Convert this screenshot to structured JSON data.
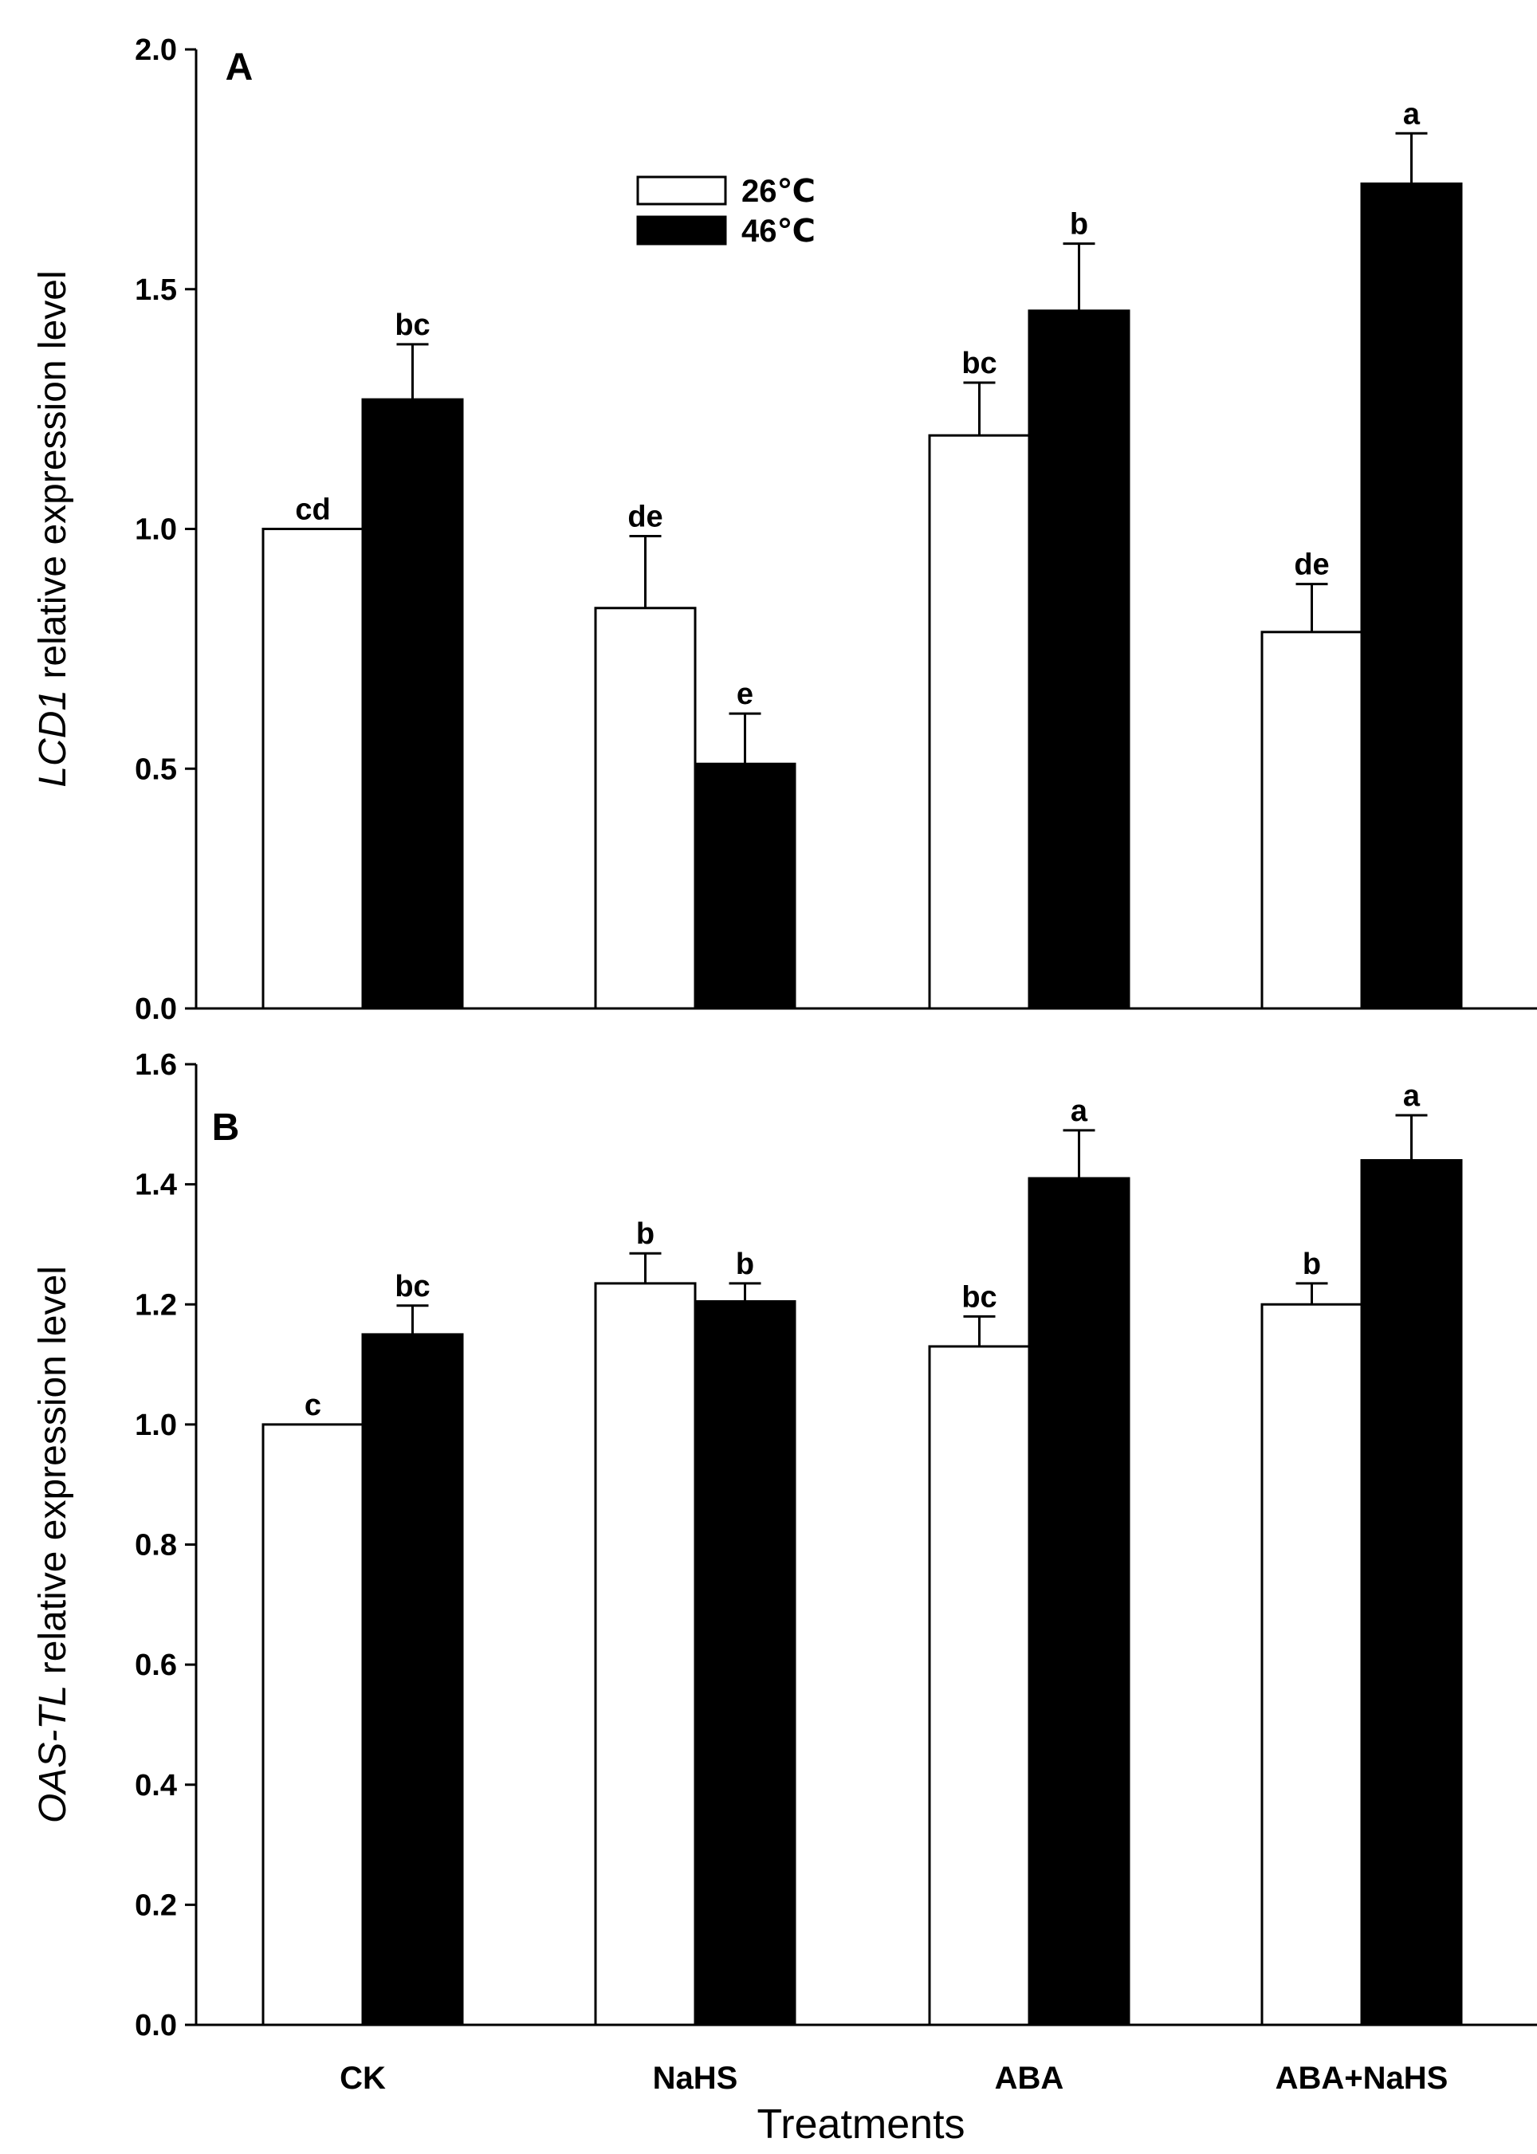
{
  "chart_data": [
    {
      "type": "bar",
      "panel": "A",
      "ylabel_gene": "LCD1",
      "ylabel_rest": " relative expression level",
      "ylim": [
        0,
        2.0
      ],
      "yticks": [
        0.0,
        0.5,
        1.0,
        1.5,
        2.0
      ],
      "ytick_labels": [
        "0.0",
        "0.5",
        "1.0",
        "1.5",
        "2.0"
      ],
      "categories": [
        "CK",
        "NaHS",
        "ABA",
        "ABA+NaHS"
      ],
      "series": [
        {
          "name": "26℃",
          "color": "#ffffff",
          "values": [
            1.0,
            0.835,
            1.195,
            0.785
          ],
          "errors": [
            0.0,
            0.15,
            0.11,
            0.1
          ],
          "letters": [
            "cd",
            "de",
            "bc",
            "de"
          ]
        },
        {
          "name": "46℃",
          "color": "#000000",
          "values": [
            1.27,
            0.51,
            1.455,
            1.72
          ],
          "errors": [
            0.115,
            0.105,
            0.14,
            0.105
          ],
          "letters": [
            "bc",
            "e",
            "b",
            "a"
          ]
        }
      ],
      "legend": {
        "position": "top-left",
        "entries": [
          "26℃",
          "46℃"
        ]
      }
    },
    {
      "type": "bar",
      "panel": "B",
      "ylabel_gene": "OAS-TL",
      "ylabel_rest": " relative expression level",
      "ylim": [
        0,
        1.6
      ],
      "yticks": [
        0.0,
        0.2,
        0.4,
        0.6,
        0.8,
        1.0,
        1.2,
        1.4,
        1.6
      ],
      "ytick_labels": [
        "0.0",
        "0.2",
        "0.4",
        "0.6",
        "0.8",
        "1.0",
        "1.2",
        "1.4",
        "1.6"
      ],
      "categories": [
        "CK",
        "NaHS",
        "ABA",
        "ABA+NaHS"
      ],
      "series": [
        {
          "name": "26℃",
          "color": "#ffffff",
          "values": [
            1.0,
            1.235,
            1.13,
            1.2
          ],
          "errors": [
            0.0,
            0.05,
            0.05,
            0.035
          ],
          "letters": [
            "c",
            "b",
            "bc",
            "b"
          ]
        },
        {
          "name": "46℃",
          "color": "#000000",
          "values": [
            1.15,
            1.205,
            1.41,
            1.44
          ],
          "errors": [
            0.048,
            0.03,
            0.08,
            0.075
          ],
          "letters": [
            "bc",
            "b",
            "a",
            "a"
          ]
        }
      ],
      "xlabel": "Treatments"
    }
  ]
}
